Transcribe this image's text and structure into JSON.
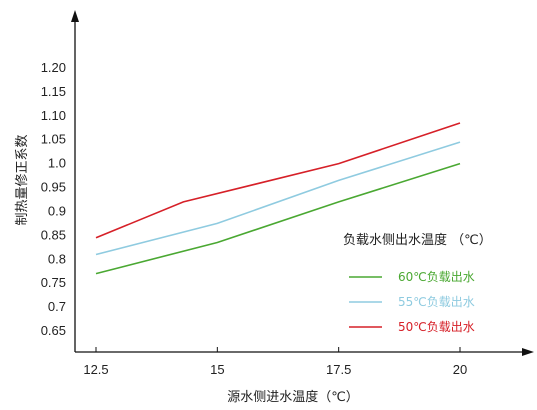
{
  "chart_data": {
    "type": "line",
    "xlabel": "源水侧进水温度（℃）",
    "ylabel": "制热量修正系数",
    "xlim": [
      12.5,
      20
    ],
    "ylim": [
      0.65,
      1.2
    ],
    "x_ticks": [
      "12.5",
      "15",
      "17.5",
      "20"
    ],
    "y_ticks": [
      "0.65",
      "0.7",
      "0.75",
      "0.8",
      "0.85",
      "0.9",
      "0.95",
      "1.0",
      "1.05",
      "1.10",
      "1.15",
      "1.20"
    ],
    "legend_title": "负载水侧出水温度 （℃）",
    "legend_position": "right",
    "grid": false,
    "series": [
      {
        "name": "60℃负载出水",
        "color": "#4aa832",
        "x": [
          12.5,
          15,
          17.5,
          20
        ],
        "y": [
          0.77,
          0.835,
          0.92,
          1.0
        ]
      },
      {
        "name": "55℃负载出水",
        "color": "#8fcbe0",
        "x": [
          12.5,
          15,
          17.5,
          20
        ],
        "y": [
          0.81,
          0.875,
          0.965,
          1.045
        ]
      },
      {
        "name": "50℃负载出水",
        "color": "#d62028",
        "x": [
          12.5,
          14.3,
          17.5,
          20
        ],
        "y": [
          0.845,
          0.92,
          1.0,
          1.085
        ]
      }
    ]
  }
}
